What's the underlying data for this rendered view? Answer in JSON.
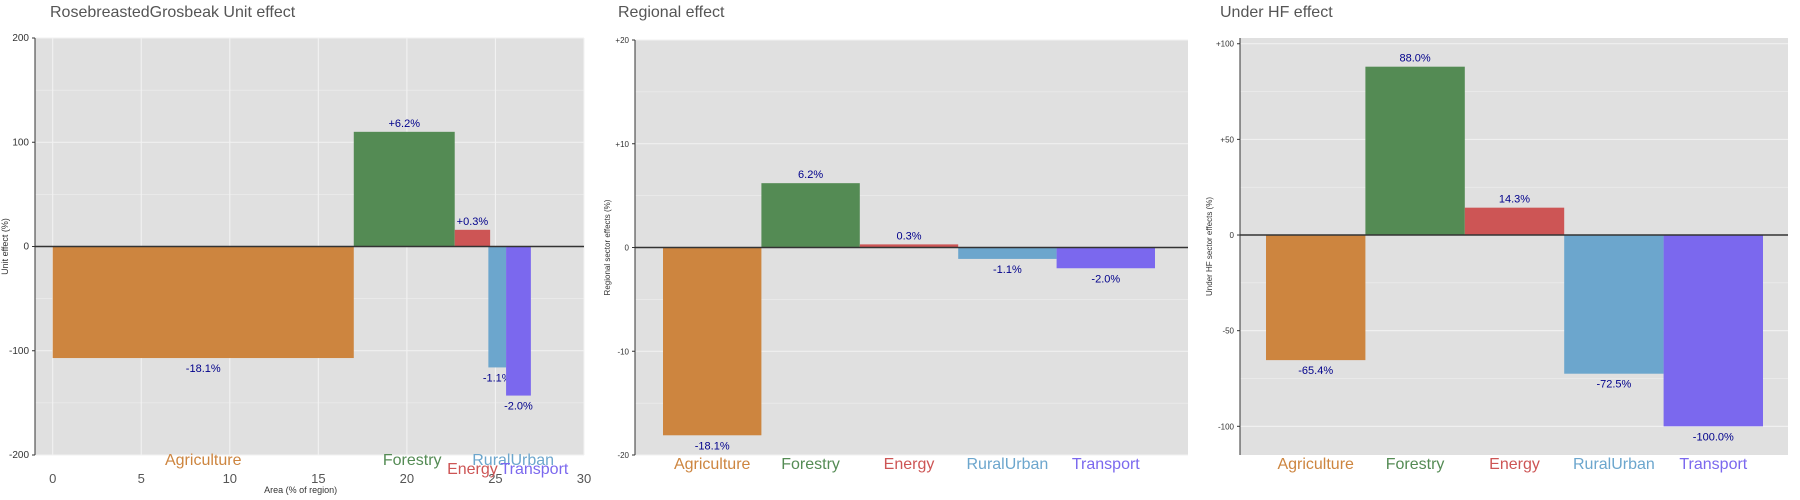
{
  "chart_data": [
    {
      "type": "bar",
      "title": "RosebreastedGrosbeak Unit effect",
      "xlabel": "Area (% of region)",
      "ylabel": "Unit effect (%)",
      "xlim": [
        -1,
        30
      ],
      "ylim": [
        -200,
        200
      ],
      "xticks": [
        "0",
        "5",
        "10",
        "15",
        "20",
        "25",
        "30"
      ],
      "yticks": [
        "200",
        "100",
        "0",
        "-100",
        "-200"
      ],
      "grid": true,
      "categories": [
        "Agriculture",
        "Forestry",
        "Energy",
        "RuralUrban",
        "Transport"
      ],
      "x_start": [
        0,
        17,
        22.7,
        24.6,
        25.6
      ],
      "x_end": [
        17,
        22.7,
        24.7,
        25.6,
        27
      ],
      "values": [
        -107,
        110,
        16,
        -116,
        -143
      ],
      "labels": [
        "-18.1%",
        "+6.2%",
        "+0.3%",
        "-1.1%",
        "-2.0%"
      ]
    },
    {
      "type": "bar",
      "title": "Regional effect",
      "xlabel": "",
      "ylabel": "Regional sector effects (%)",
      "ylim": [
        -20,
        20
      ],
      "yticks": [
        "+20",
        "+10",
        "0",
        "-10",
        "-20"
      ],
      "grid": true,
      "categories": [
        "Agriculture",
        "Forestry",
        "Energy",
        "RuralUrban",
        "Transport"
      ],
      "values": [
        -18.1,
        6.2,
        0.3,
        -1.1,
        -2.0
      ],
      "labels": [
        "-18.1%",
        "6.2%",
        "0.3%",
        "-1.1%",
        "-2.0%"
      ]
    },
    {
      "type": "bar",
      "title": "Under HF effect",
      "xlabel": "",
      "ylabel": "Under HF sector effects (%)",
      "ylim": [
        -115,
        103
      ],
      "yticks": [
        "+100",
        "+50",
        "0",
        "-50",
        "-100"
      ],
      "ytick_values": [
        100,
        50,
        0,
        -50,
        -100
      ],
      "grid": true,
      "categories": [
        "Agriculture",
        "Forestry",
        "Energy",
        "RuralUrban",
        "Transport"
      ],
      "values": [
        -65.4,
        88.0,
        14.3,
        -72.5,
        -100.0
      ],
      "labels": [
        "-65.4%",
        "88.0%",
        "14.3%",
        "-72.5%",
        "-100.0%"
      ]
    }
  ],
  "colors": {
    "Agriculture": "#cd853f",
    "Forestry": "#548b54",
    "Energy": "#cd5555",
    "RuralUrban": "#6ca6cd",
    "Transport": "#7b68ee",
    "panel_bg": "#e0e0e0",
    "grid": "#f2f2f2",
    "value_label": "#00008b"
  }
}
